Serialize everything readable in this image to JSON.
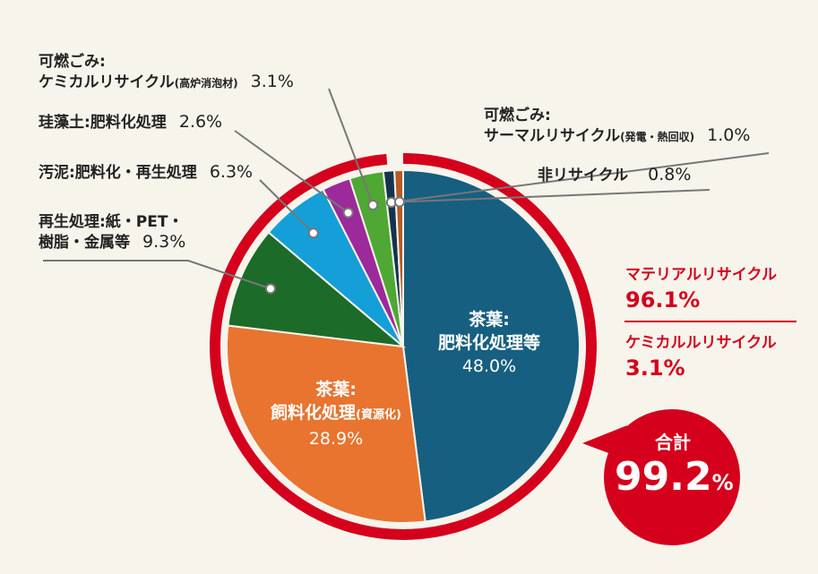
{
  "chart_data": {
    "type": "pie",
    "slices": [
      {
        "label_lines": [
          "茶葉:",
          "肥料化処理等"
        ],
        "value": 48.0,
        "value_label": "48.0%",
        "color": "#165f80"
      },
      {
        "label_lines": [
          "茶葉:",
          "飼料化処理(資源化)"
        ],
        "value": 28.9,
        "value_label": "28.9%",
        "color": "#e8742f"
      },
      {
        "label_lines": [
          "再生処理:紙・PET・",
          "樹脂・金属等"
        ],
        "value": 9.3,
        "value_label": "9.3%",
        "color": "#1c6b28"
      },
      {
        "label_lines": [
          "汚泥:肥料化・再生処理"
        ],
        "value": 6.3,
        "value_label": "6.3%",
        "color": "#149fd8"
      },
      {
        "label_lines": [
          "珪藻土:肥料化処理"
        ],
        "value": 2.6,
        "value_label": "2.6%",
        "color": "#9c2a9a"
      },
      {
        "label_lines": [
          "可燃ごみ:",
          "ケミカルリサイクル(高炉消泡材)"
        ],
        "value": 3.1,
        "value_label": "3.1%",
        "color": "#4ea833"
      },
      {
        "label_lines": [
          "可燃ごみ:",
          "サーマルリサイクル(発電・熱回収)"
        ],
        "value": 1.0,
        "value_label": "1.0%",
        "color": "#14344e"
      },
      {
        "label_lines": [
          "非リサイクル"
        ],
        "value": 0.8,
        "value_label": "0.8%",
        "color": "#b85a25"
      }
    ],
    "ring_color": "#d5001c"
  },
  "labels": {
    "s0": {
      "line1": "茶葉:",
      "line2": "肥料化処理等",
      "pct": "48.0%"
    },
    "s1": {
      "line1": "茶葉:",
      "line2a": "飼料化処理",
      "line2b": "(資源化)",
      "pct": "28.9%"
    },
    "s2": {
      "line1": "再生処理:紙・PET・",
      "line2": "樹脂・金属等",
      "pct": "9.3%"
    },
    "s3": {
      "line1": "汚泥:肥料化・再生処理",
      "pct": "6.3%"
    },
    "s4": {
      "line1": "珪藻土:肥料化処理",
      "pct": "2.6%"
    },
    "s5": {
      "line1": "可燃ごみ:",
      "line2a": "ケミカルリサイクル",
      "line2b": "(高炉消泡材)",
      "pct": "3.1%"
    },
    "s6": {
      "line1": "可燃ごみ:",
      "line2a": "サーマルリサイクル",
      "line2b": "(発電・熱回収)",
      "pct": "1.0%"
    },
    "s7": {
      "line1": "非リサイクル",
      "pct": "0.8%"
    }
  },
  "summary": {
    "material": {
      "name": "マテリアルリサイクル",
      "value": "96.1%"
    },
    "chemical": {
      "name": "ケミカルルリサイクル",
      "value": "3.1%"
    }
  },
  "total": {
    "label": "合計",
    "value": "99.2",
    "unit": "%"
  }
}
